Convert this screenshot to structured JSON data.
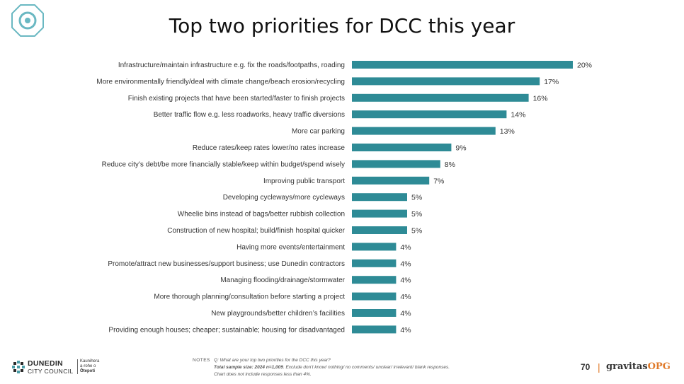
{
  "title": "Top two priorities for DCC this year",
  "colors": {
    "bar": "#2e8b96",
    "logo": "#6ab8c2"
  },
  "chart_data": {
    "type": "bar",
    "orientation": "horizontal",
    "categories": [
      "Infrastructure/maintain infrastructure e.g. fix the roads/footpaths, roading",
      "More environmentally friendly/deal with climate change/beach erosion/recycling",
      "Finish existing projects that have been started/faster to finish projects",
      "Better traffic flow e.g. less roadworks, heavy traffic diversions",
      "More car parking",
      "Reduce rates/keep rates lower/no rates increase",
      "Reduce city’s debt/be more financially stable/keep within budget/spend wisely",
      "Improving public transport",
      "Developing cycleways/more cycleways",
      "Wheelie bins instead of bags/better rubbish collection",
      "Construction of new hospital; build/finish hospital quicker",
      "Having more events/entertainment",
      "Promote/attract new businesses/support business; use Dunedin contractors",
      "Managing flooding/drainage/stormwater",
      "More thorough planning/consultation before starting a project",
      "New playgrounds/better children’s facilities",
      "Providing enough houses; cheaper; sustainable; housing for disadvantaged"
    ],
    "values": [
      20,
      17,
      16,
      14,
      13,
      9,
      8,
      7,
      5,
      5,
      5,
      4,
      4,
      4,
      4,
      4,
      4
    ],
    "value_labels": [
      "20%",
      "17%",
      "16%",
      "14%",
      "13%",
      "9%",
      "8%",
      "7%",
      "5%",
      "5%",
      "5%",
      "4%",
      "4%",
      "4%",
      "4%",
      "4%",
      "4%"
    ],
    "value_unit": "%",
    "grid": false,
    "legend": "none"
  },
  "notes": {
    "label": "NOTES",
    "question": "Q: What are your top two priorities for the DCC this year?",
    "sample_bold": "Total sample size: 2024 n=1,009",
    "sample_rest": ". Exclude don’t know/ nothing/ no comments/ unclear/ irrelevant/ blank responses.",
    "chart_note": "Chart does not include responses less than 4%."
  },
  "footer": {
    "council_line1": "DUNEDIN",
    "council_line2": "CITY COUNCIL",
    "maori_1": "Kaunihera",
    "maori_2": "a-rohe o",
    "maori_3": "Ōtepoti",
    "page_number": "70",
    "separator": "|",
    "brand_main": "gravitas",
    "brand_accent": "OPG"
  }
}
